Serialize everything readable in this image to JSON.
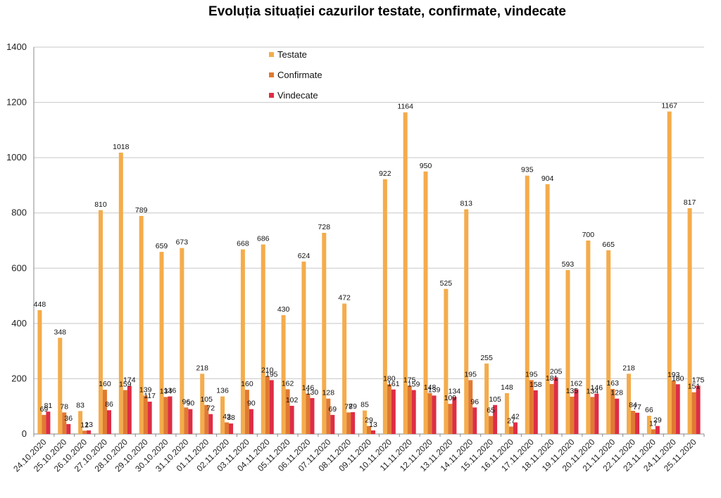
{
  "chart_data": {
    "type": "bar",
    "title": "Evoluția situației cazurilor testate, confirmate, vindecate",
    "xlabel": "",
    "ylabel": "",
    "ylim": [
      0,
      1400
    ],
    "yticks": [
      "0",
      "200",
      "400",
      "600",
      "800",
      "1000",
      "1200",
      "1400"
    ],
    "grid": true,
    "legend_position": "top-center",
    "categories": [
      "24.10.2020",
      "25.10.2020",
      "26.10.2020",
      "27.10.2020",
      "28.10.2020",
      "29.10.2020",
      "30.10.2020",
      "31.10.2020",
      "01.11.2020",
      "02.11.2020",
      "03.11.2020",
      "04.11.2020",
      "05.11.2020",
      "06.11.2020",
      "07.11.2020",
      "08.11.2020",
      "09.11.2020",
      "10.11.2020",
      "11.11.2020",
      "12.11.2020",
      "13.11.2020",
      "14.11.2020",
      "15.11.2020",
      "16.11.2020",
      "17.11.2020",
      "18.11.2020",
      "19.11.2020",
      "20.11.2020",
      "21.11.2020",
      "22.11.2020",
      "23.11.2020",
      "24.11.2020",
      "25.11.2020"
    ],
    "series": [
      {
        "name": "Testate",
        "color": "#F4AC4C",
        "values": [
          448,
          348,
          83,
          810,
          1018,
          789,
          659,
          673,
          218,
          136,
          668,
          686,
          430,
          624,
          728,
          472,
          85,
          922,
          1164,
          950,
          525,
          813,
          255,
          148,
          935,
          904,
          593,
          700,
          665,
          218,
          66,
          1167,
          817
        ]
      },
      {
        "name": "Confirmate",
        "color": "#E07A32",
        "values": [
          69,
          78,
          12,
          160,
          159,
          139,
          134,
          96,
          105,
          42,
          160,
          210,
          162,
          146,
          128,
          78,
          29,
          180,
          175,
          148,
          109,
          195,
          65,
          27,
          195,
          181,
          135,
          134,
          163,
          84,
          17,
          193,
          151
        ]
      },
      {
        "name": "Vindecate",
        "color": "#DE2D45",
        "values": [
          81,
          36,
          13,
          86,
          174,
          117,
          136,
          90,
          72,
          38,
          90,
          195,
          102,
          130,
          69,
          79,
          13,
          161,
          159,
          139,
          134,
          96,
          105,
          42,
          158,
          205,
          162,
          146,
          128,
          77,
          29,
          180,
          175
        ]
      }
    ]
  }
}
